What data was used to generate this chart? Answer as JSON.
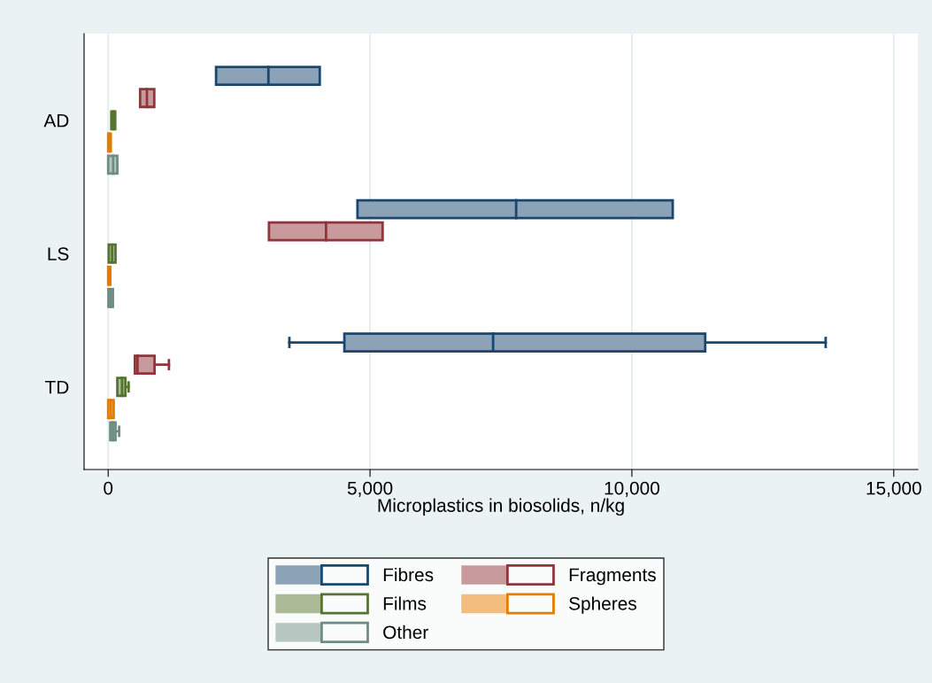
{
  "chart_data": {
    "type": "box",
    "orientation": "horizontal",
    "xlabel": "Microplastics in biosolids, n/kg",
    "categories": [
      "AD",
      "LS",
      "TD"
    ],
    "xlim": [
      -460,
      15460
    ],
    "xticks": [
      0,
      {
        "value": 5000,
        "label": "5,000"
      },
      {
        "value": 10000,
        "label": "10,000"
      },
      {
        "value": 15000,
        "label": "15,000"
      }
    ],
    "grid": "x",
    "legend": "bottom",
    "series": [
      {
        "name": "Fibres",
        "color": "#8ca3b7",
        "boxes": [
          {
            "low": 2060,
            "q1": 2060,
            "median": 3060,
            "q3": 4040,
            "high": 4040
          },
          {
            "low": 4760,
            "q1": 4760,
            "median": 7790,
            "q3": 10780,
            "high": 10780
          },
          {
            "low": 3460,
            "q1": 4510,
            "median": 7350,
            "q3": 11400,
            "high": 13700
          }
        ]
      },
      {
        "name": "Fragments",
        "color": "#c89a9d",
        "boxes": [
          {
            "low": 610,
            "q1": 610,
            "median": 740,
            "q3": 880,
            "high": 880
          },
          {
            "low": 3070,
            "q1": 3070,
            "median": 4160,
            "q3": 5240,
            "high": 5240
          },
          {
            "low": 510,
            "q1": 510,
            "median": 560,
            "q3": 885,
            "high": 1160
          }
        ]
      },
      {
        "name": "Films",
        "color": "#aaba97",
        "boxes": [
          {
            "low": 60,
            "q1": 60,
            "median": 100,
            "q3": 135,
            "high": 135
          },
          {
            "low": 10,
            "q1": 10,
            "median": 75,
            "q3": 140,
            "high": 140
          },
          {
            "low": 175,
            "q1": 175,
            "median": 265,
            "q3": 330,
            "high": 390
          }
        ]
      },
      {
        "name": "Spheres",
        "color": "#f1be7f",
        "boxes": [
          {
            "low": 0,
            "q1": 0,
            "median": 20,
            "q3": 50,
            "high": 50
          },
          {
            "low": 0,
            "q1": 0,
            "median": 20,
            "q3": 40,
            "high": 40
          },
          {
            "low": 0,
            "q1": 0,
            "median": 50,
            "q3": 105,
            "high": 105
          }
        ]
      },
      {
        "name": "Other",
        "color": "#b6c6c1",
        "boxes": [
          {
            "low": 0,
            "q1": 0,
            "median": 95,
            "q3": 175,
            "high": 175
          },
          {
            "low": 5,
            "q1": 5,
            "median": 50,
            "q3": 90,
            "high": 90
          },
          {
            "low": 40,
            "q1": 40,
            "median": 90,
            "q3": 140,
            "high": 210
          }
        ]
      }
    ]
  }
}
